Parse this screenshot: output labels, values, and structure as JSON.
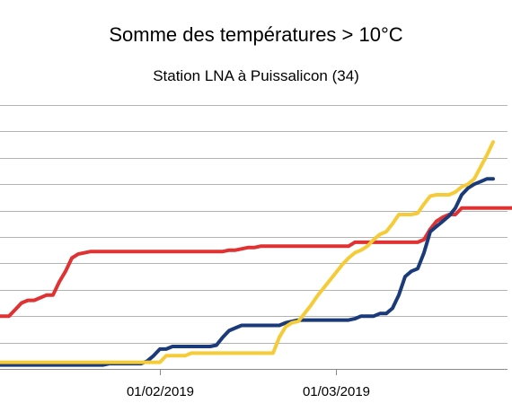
{
  "chart_data": {
    "type": "line",
    "title": "Somme des températures > 10°C",
    "subtitle": "Station LNA à Puissalicon (34)",
    "xlabel": "",
    "ylabel": "",
    "x_range": [
      "2019-01-01",
      "2019-03-31"
    ],
    "x_ticks": [
      {
        "date": "2019-02-01",
        "label": "01/02/2019"
      },
      {
        "date": "2019-03-01",
        "label": "01/03/2019"
      }
    ],
    "y_range": [
      0,
      10
    ],
    "y_gridlines": [
      0,
      1,
      2,
      3,
      4,
      5,
      6,
      7,
      8,
      9,
      10
    ],
    "grid": true,
    "legend": "none",
    "series": [
      {
        "color": "#e03232",
        "points": [
          [
            "2019-01-01",
            2.0
          ],
          [
            "2019-01-08",
            2.0
          ],
          [
            "2019-01-10",
            2.5
          ],
          [
            "2019-01-11",
            2.6
          ],
          [
            "2019-01-12",
            2.6
          ],
          [
            "2019-01-14",
            2.8
          ],
          [
            "2019-01-15",
            2.8
          ],
          [
            "2019-01-16",
            3.3
          ],
          [
            "2019-01-17",
            3.7
          ],
          [
            "2019-01-18",
            4.2
          ],
          [
            "2019-01-19",
            4.35
          ],
          [
            "2019-01-21",
            4.45
          ],
          [
            "2019-01-22",
            4.45
          ],
          [
            "2019-02-11",
            4.45
          ],
          [
            "2019-02-12",
            4.5
          ],
          [
            "2019-02-13",
            4.5
          ],
          [
            "2019-02-15",
            4.6
          ],
          [
            "2019-02-16",
            4.6
          ],
          [
            "2019-02-17",
            4.65
          ],
          [
            "2019-02-18",
            4.65
          ],
          [
            "2019-03-03",
            4.65
          ],
          [
            "2019-03-04",
            4.8
          ],
          [
            "2019-03-14",
            4.8
          ],
          [
            "2019-03-15",
            4.9
          ],
          [
            "2019-03-16",
            5.3
          ],
          [
            "2019-03-17",
            5.6
          ],
          [
            "2019-03-18",
            5.75
          ],
          [
            "2019-03-19",
            5.85
          ],
          [
            "2019-03-20",
            5.85
          ],
          [
            "2019-03-21",
            6.1
          ],
          [
            "2019-03-22",
            6.1
          ],
          [
            "2019-03-29",
            6.1
          ],
          [
            "2019-03-30",
            6.2
          ],
          [
            "2019-03-31",
            6.2
          ]
        ]
      },
      {
        "color": "#1a3a7a",
        "points": [
          [
            "2019-01-01",
            0.0
          ],
          [
            "2019-01-04",
            0.0
          ],
          [
            "2019-01-05",
            0.15
          ],
          [
            "2019-01-19",
            0.15
          ],
          [
            "2019-01-20",
            0.15
          ],
          [
            "2019-01-23",
            0.15
          ],
          [
            "2019-01-24",
            0.2
          ],
          [
            "2019-01-29",
            0.2
          ],
          [
            "2019-01-30",
            0.3
          ],
          [
            "2019-01-31",
            0.5
          ],
          [
            "2019-02-01",
            0.75
          ],
          [
            "2019-02-02",
            0.75
          ],
          [
            "2019-02-03",
            0.85
          ],
          [
            "2019-02-09",
            0.85
          ],
          [
            "2019-02-10",
            0.9
          ],
          [
            "2019-02-11",
            1.2
          ],
          [
            "2019-02-12",
            1.45
          ],
          [
            "2019-02-13",
            1.55
          ],
          [
            "2019-02-14",
            1.65
          ],
          [
            "2019-02-15",
            1.65
          ],
          [
            "2019-02-20",
            1.65
          ],
          [
            "2019-02-21",
            1.75
          ],
          [
            "2019-02-23",
            1.85
          ],
          [
            "2019-03-03",
            1.85
          ],
          [
            "2019-03-04",
            1.9
          ],
          [
            "2019-03-05",
            2.0
          ],
          [
            "2019-03-07",
            2.0
          ],
          [
            "2019-03-08",
            2.1
          ],
          [
            "2019-03-09",
            2.1
          ],
          [
            "2019-03-10",
            2.3
          ],
          [
            "2019-03-11",
            2.8
          ],
          [
            "2019-03-12",
            3.5
          ],
          [
            "2019-03-13",
            3.7
          ],
          [
            "2019-03-14",
            3.8
          ],
          [
            "2019-03-15",
            4.4
          ],
          [
            "2019-03-16",
            5.2
          ],
          [
            "2019-03-17",
            5.4
          ],
          [
            "2019-03-18",
            5.6
          ],
          [
            "2019-03-19",
            5.8
          ],
          [
            "2019-03-20",
            6.1
          ],
          [
            "2019-03-21",
            6.6
          ],
          [
            "2019-03-22",
            6.85
          ],
          [
            "2019-03-23",
            7.0
          ],
          [
            "2019-03-24",
            7.1
          ],
          [
            "2019-03-25",
            7.2
          ],
          [
            "2019-03-26",
            7.2
          ]
        ]
      },
      {
        "color": "#f5cc38",
        "points": [
          [
            "2019-01-01",
            0.0
          ],
          [
            "2019-01-04",
            0.0
          ],
          [
            "2019-01-05",
            0.25
          ],
          [
            "2019-01-26",
            0.25
          ],
          [
            "2019-02-01",
            0.25
          ],
          [
            "2019-02-02",
            0.5
          ],
          [
            "2019-02-05",
            0.5
          ],
          [
            "2019-02-06",
            0.6
          ],
          [
            "2019-02-19",
            0.6
          ],
          [
            "2019-02-20",
            1.2
          ],
          [
            "2019-02-21",
            1.6
          ],
          [
            "2019-02-22",
            1.75
          ],
          [
            "2019-02-23",
            1.8
          ],
          [
            "2019-02-24",
            2.1
          ],
          [
            "2019-02-25",
            2.4
          ],
          [
            "2019-02-26",
            2.75
          ],
          [
            "2019-02-27",
            3.05
          ],
          [
            "2019-02-28",
            3.35
          ],
          [
            "2019-03-01",
            3.65
          ],
          [
            "2019-03-02",
            3.95
          ],
          [
            "2019-03-03",
            4.2
          ],
          [
            "2019-03-04",
            4.4
          ],
          [
            "2019-03-05",
            4.5
          ],
          [
            "2019-03-06",
            4.65
          ],
          [
            "2019-03-07",
            4.9
          ],
          [
            "2019-03-08",
            5.1
          ],
          [
            "2019-03-09",
            5.2
          ],
          [
            "2019-03-10",
            5.5
          ],
          [
            "2019-03-11",
            5.85
          ],
          [
            "2019-03-12",
            5.85
          ],
          [
            "2019-03-13",
            5.85
          ],
          [
            "2019-03-14",
            5.9
          ],
          [
            "2019-03-15",
            6.25
          ],
          [
            "2019-03-16",
            6.55
          ],
          [
            "2019-03-17",
            6.6
          ],
          [
            "2019-03-18",
            6.6
          ],
          [
            "2019-03-19",
            6.6
          ],
          [
            "2019-03-20",
            6.7
          ],
          [
            "2019-03-21",
            6.9
          ],
          [
            "2019-03-22",
            7.0
          ],
          [
            "2019-03-23",
            7.2
          ],
          [
            "2019-03-24",
            7.65
          ],
          [
            "2019-03-25",
            8.1
          ],
          [
            "2019-03-26",
            8.6
          ]
        ]
      }
    ]
  }
}
